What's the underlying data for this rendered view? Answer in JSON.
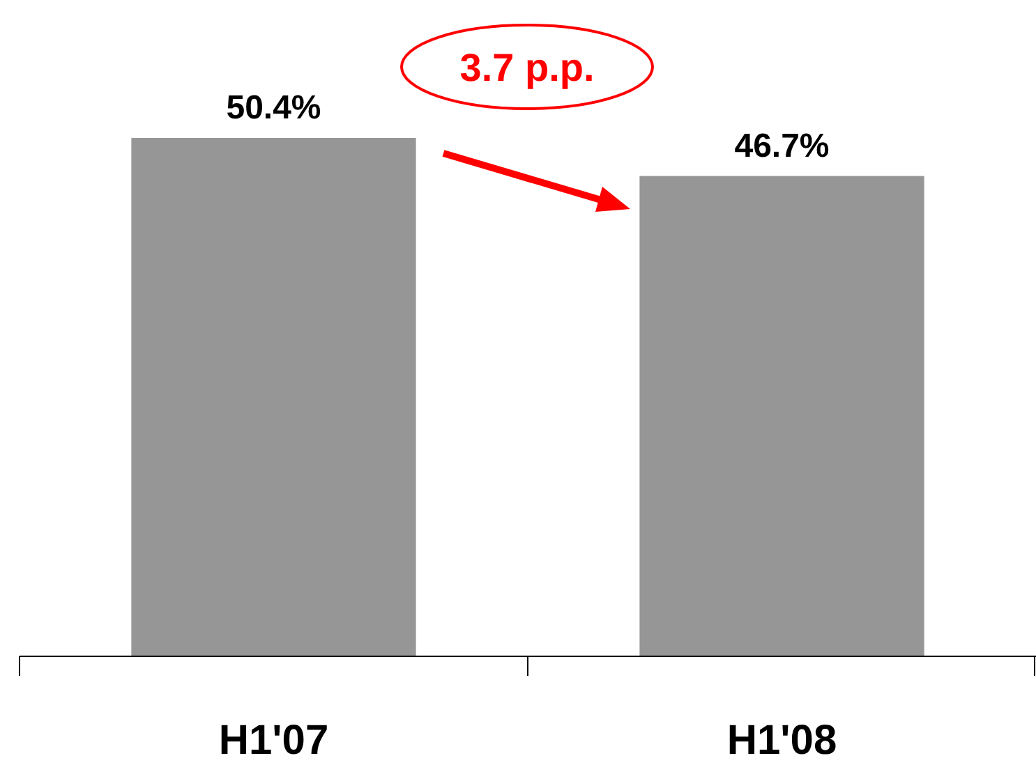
{
  "chart_data": {
    "type": "bar",
    "categories": [
      "H1'07",
      "H1'08"
    ],
    "values": [
      50.4,
      46.7
    ],
    "color": "#969696",
    "data_labels": true,
    "value_labels": [
      "50.4%",
      "46.7%"
    ],
    "annotations": [
      "3.7 p.p."
    ]
  }
}
